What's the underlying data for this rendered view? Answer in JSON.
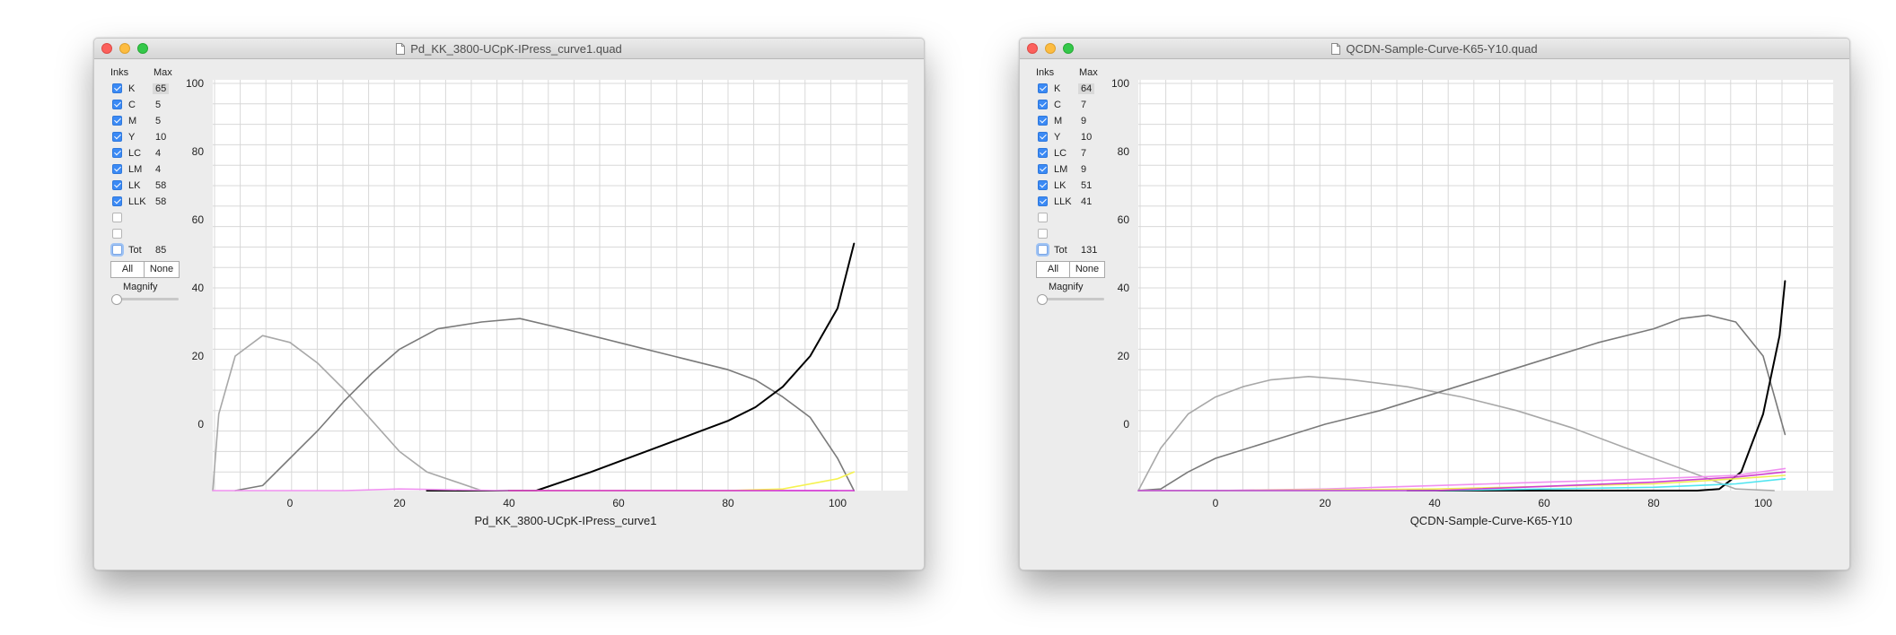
{
  "windows": [
    {
      "title": "Pd_KK_3800-UCpK-IPress_curve1.quad",
      "headers": {
        "inks": "Inks",
        "max": "Max"
      },
      "inks": [
        {
          "name": "K",
          "max": "65",
          "checked": true
        },
        {
          "name": "C",
          "max": "5",
          "checked": true
        },
        {
          "name": "M",
          "max": "5",
          "checked": true
        },
        {
          "name": "Y",
          "max": "10",
          "checked": true
        },
        {
          "name": "LC",
          "max": "4",
          "checked": true
        },
        {
          "name": "LM",
          "max": "4",
          "checked": true
        },
        {
          "name": "LK",
          "max": "58",
          "checked": true
        },
        {
          "name": "LLK",
          "max": "58",
          "checked": true
        }
      ],
      "total": {
        "label": "Tot",
        "value": "85"
      },
      "buttons": {
        "all": "All",
        "none": "None"
      },
      "magnify_label": "Magnify",
      "magnify_value": 0,
      "chart_data": {
        "type": "line",
        "xlabel": "Pd_KK_3800-UCpK-IPress_curve1",
        "ylabel": "",
        "x_ticks": [
          "0",
          "20",
          "40",
          "60",
          "80",
          "100"
        ],
        "y_ticks": [
          "0",
          "20",
          "40",
          "60",
          "80",
          "100"
        ],
        "grid": true,
        "series": [
          {
            "name": "LLK",
            "color": "#a8a8a8",
            "points": [
              [
                -15,
                -25
              ],
              [
                -13,
                3
              ],
              [
                -10,
                20
              ],
              [
                -5,
                26
              ],
              [
                0,
                24
              ],
              [
                5,
                18
              ],
              [
                10,
                10
              ],
              [
                15,
                1
              ],
              [
                20,
                -8
              ],
              [
                25,
                -14
              ],
              [
                35,
                -20
              ],
              [
                45,
                -25
              ]
            ]
          },
          {
            "name": "LK",
            "color": "#7a7a7a",
            "points": [
              [
                -10,
                -25
              ],
              [
                -5,
                -18
              ],
              [
                0,
                -10
              ],
              [
                5,
                -2
              ],
              [
                10,
                7
              ],
              [
                15,
                15
              ],
              [
                20,
                22
              ],
              [
                27,
                28
              ],
              [
                35,
                30
              ],
              [
                42,
                31
              ],
              [
                50,
                28
              ],
              [
                60,
                24
              ],
              [
                70,
                20
              ],
              [
                80,
                16
              ],
              [
                85,
                13
              ],
              [
                90,
                8
              ],
              [
                95,
                2
              ],
              [
                100,
                -10
              ],
              [
                103,
                -25
              ]
            ]
          },
          {
            "name": "K",
            "color": "#000000",
            "points": [
              [
                25,
                -25
              ],
              [
                35,
                -23
              ],
              [
                45,
                -20
              ],
              [
                55,
                -14
              ],
              [
                65,
                -8
              ],
              [
                75,
                -2
              ],
              [
                80,
                1
              ],
              [
                85,
                5
              ],
              [
                90,
                11
              ],
              [
                95,
                20
              ],
              [
                100,
                34
              ],
              [
                103,
                53
              ]
            ]
          },
          {
            "name": "LM",
            "color": "#f090f0",
            "points": [
              [
                -15,
                -25
              ],
              [
                0,
                -22
              ],
              [
                10,
                -20
              ],
              [
                20,
                -19
              ],
              [
                40,
                -20
              ],
              [
                60,
                -21
              ],
              [
                80,
                -21
              ],
              [
                100,
                -21
              ]
            ]
          },
          {
            "name": "Y",
            "color": "#f5f250",
            "points": [
              [
                40,
                -25
              ],
              [
                60,
                -23
              ],
              [
                80,
                -21
              ],
              [
                90,
                -19
              ],
              [
                100,
                -16
              ],
              [
                103,
                -14
              ]
            ]
          },
          {
            "name": "M",
            "color": "#d030d0",
            "points": [
              [
                40,
                -25
              ],
              [
                60,
                -24
              ],
              [
                80,
                -23
              ],
              [
                95,
                -21
              ],
              [
                103,
                -20
              ]
            ]
          }
        ]
      }
    },
    {
      "title": "QCDN-Sample-Curve-K65-Y10.quad",
      "headers": {
        "inks": "Inks",
        "max": "Max"
      },
      "inks": [
        {
          "name": "K",
          "max": "64",
          "checked": true
        },
        {
          "name": "C",
          "max": "7",
          "checked": true
        },
        {
          "name": "M",
          "max": "9",
          "checked": true
        },
        {
          "name": "Y",
          "max": "10",
          "checked": true
        },
        {
          "name": "LC",
          "max": "7",
          "checked": true
        },
        {
          "name": "LM",
          "max": "9",
          "checked": true
        },
        {
          "name": "LK",
          "max": "51",
          "checked": true
        },
        {
          "name": "LLK",
          "max": "41",
          "checked": true
        }
      ],
      "total": {
        "label": "Tot",
        "value": "131"
      },
      "buttons": {
        "all": "All",
        "none": "None"
      },
      "magnify_label": "Magnify",
      "magnify_value": 0,
      "chart_data": {
        "type": "line",
        "xlabel": "QCDN-Sample-Curve-K65-Y10",
        "ylabel": "",
        "x_ticks": [
          "0",
          "20",
          "40",
          "60",
          "80",
          "100"
        ],
        "y_ticks": [
          "0",
          "20",
          "40",
          "60",
          "80",
          "100"
        ],
        "grid": true,
        "series": [
          {
            "name": "LLK",
            "color": "#a8a8a8",
            "points": [
              [
                -15,
                -25
              ],
              [
                -10,
                -7
              ],
              [
                -5,
                3
              ],
              [
                0,
                8
              ],
              [
                5,
                11
              ],
              [
                10,
                13
              ],
              [
                17,
                14
              ],
              [
                25,
                13
              ],
              [
                35,
                11
              ],
              [
                45,
                8
              ],
              [
                55,
                4
              ],
              [
                65,
                -1
              ],
              [
                75,
                -7
              ],
              [
                85,
                -13
              ],
              [
                95,
                -19
              ],
              [
                102,
                -25
              ]
            ]
          },
          {
            "name": "LK",
            "color": "#7a7a7a",
            "points": [
              [
                -15,
                -25
              ],
              [
                -10,
                -19
              ],
              [
                -5,
                -14
              ],
              [
                0,
                -10
              ],
              [
                10,
                -5
              ],
              [
                20,
                0
              ],
              [
                30,
                4
              ],
              [
                40,
                9
              ],
              [
                50,
                14
              ],
              [
                60,
                19
              ],
              [
                70,
                24
              ],
              [
                80,
                28
              ],
              [
                85,
                31
              ],
              [
                90,
                32
              ],
              [
                95,
                30
              ],
              [
                100,
                20
              ],
              [
                104,
                -3
              ]
            ]
          },
          {
            "name": "K",
            "color": "#000000",
            "points": [
              [
                35,
                -25
              ],
              [
                60,
                -25
              ],
              [
                70,
                -24.5
              ],
              [
                80,
                -24
              ],
              [
                88,
                -22
              ],
              [
                92,
                -19
              ],
              [
                96,
                -14
              ],
              [
                100,
                3
              ],
              [
                103,
                26
              ],
              [
                104,
                42
              ]
            ]
          },
          {
            "name": "LM",
            "color": "#f090f0",
            "points": [
              [
                -15,
                -25
              ],
              [
                -10,
                -21
              ],
              [
                0,
                -20
              ],
              [
                20,
                -19
              ],
              [
                40,
                -18
              ],
              [
                60,
                -17
              ],
              [
                80,
                -16
              ],
              [
                95,
                -15
              ],
              [
                104,
                -13
              ]
            ]
          },
          {
            "name": "Y",
            "color": "#f0ee55",
            "points": [
              [
                -15,
                -25
              ],
              [
                0,
                -21
              ],
              [
                40,
                -19
              ],
              [
                80,
                -17.5
              ],
              [
                95,
                -16
              ],
              [
                104,
                -15
              ]
            ]
          },
          {
            "name": "C",
            "color": "#50e5f0",
            "points": [
              [
                -15,
                -25
              ],
              [
                0,
                -22
              ],
              [
                40,
                -20.5
              ],
              [
                80,
                -18.5
              ],
              [
                95,
                -17.5
              ],
              [
                104,
                -16
              ]
            ]
          },
          {
            "name": "M",
            "color": "#d040d0",
            "points": [
              [
                -15,
                -25
              ],
              [
                0,
                -21.5
              ],
              [
                40,
                -19.5
              ],
              [
                80,
                -17
              ],
              [
                95,
                -15.5
              ],
              [
                104,
                -14
              ]
            ]
          }
        ]
      }
    }
  ]
}
